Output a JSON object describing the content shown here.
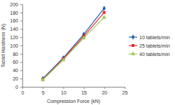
{
  "chart_data": {
    "type": "line",
    "x_label": "Compression Force (kN)",
    "y_label": "Tablet Hardness (N)",
    "x": [
      5,
      10,
      15,
      20
    ],
    "series": [
      {
        "name": "10 tablets/min",
        "color": "#1f5fae",
        "marker": "diamond",
        "values": [
          20,
          70,
          127,
          190
        ]
      },
      {
        "name": "25 tablets/min",
        "color": "#e8282b",
        "marker": "square",
        "values": [
          18,
          68,
          122,
          180
        ]
      },
      {
        "name": "40 tablets/min",
        "color": "#9bcb5b",
        "marker": "triangle",
        "values": [
          17,
          65,
          118,
          168
        ]
      }
    ],
    "xlim": [
      0,
      25
    ],
    "xticks": [
      0,
      5,
      10,
      15,
      20,
      25
    ],
    "ylim": [
      0,
      200
    ],
    "yticks": [
      0,
      20,
      40,
      60,
      80,
      100,
      120,
      140,
      160,
      180,
      200
    ],
    "grid": false,
    "legend": "right"
  }
}
